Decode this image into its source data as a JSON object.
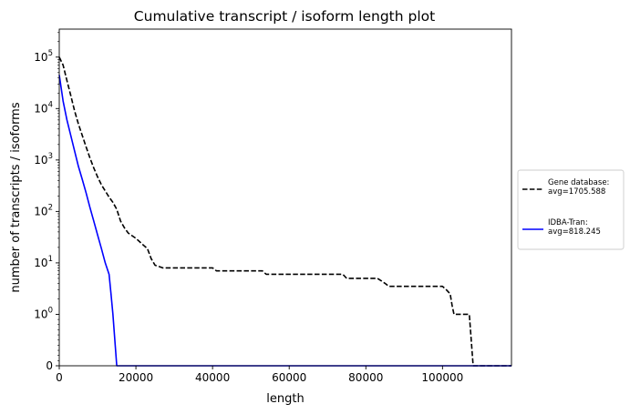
{
  "chart_data": {
    "type": "line",
    "title": "Cumulative transcript / isoform length plot",
    "xlabel": "length",
    "ylabel": "number of transcripts / isoforms",
    "yscale": "symlog",
    "xlim": [
      0,
      118000
    ],
    "ylim": [
      0,
      350000
    ],
    "x_ticks": [
      {
        "value": 0,
        "label": "0"
      },
      {
        "value": 20000,
        "label": "20000"
      },
      {
        "value": 40000,
        "label": "40000"
      },
      {
        "value": 60000,
        "label": "60000"
      },
      {
        "value": 80000,
        "label": "80000"
      },
      {
        "value": 100000,
        "label": "100000"
      }
    ],
    "y_ticks": [
      {
        "value": 0,
        "base": "0",
        "exp": ""
      },
      {
        "value": 1,
        "base": "10",
        "exp": "0"
      },
      {
        "value": 10,
        "base": "10",
        "exp": "1"
      },
      {
        "value": 100,
        "base": "10",
        "exp": "2"
      },
      {
        "value": 1000,
        "base": "10",
        "exp": "3"
      },
      {
        "value": 10000,
        "base": "10",
        "exp": "4"
      },
      {
        "value": 100000,
        "base": "10",
        "exp": "5"
      }
    ],
    "grid": false,
    "legend_placement": "outside-right",
    "series": [
      {
        "name": "Gene database:\navg=1705.588",
        "legend_lines": [
          "Gene database:",
          "avg=1705.588"
        ],
        "color": "#000000",
        "style": "dashed",
        "x": [
          0,
          1000,
          2000,
          3000,
          4000,
          5000,
          6000,
          7000,
          8000,
          9000,
          10000,
          11000,
          12000,
          13000,
          14000,
          15000,
          16000,
          17000,
          18000,
          20000,
          22000,
          23000,
          24000,
          25000,
          26000,
          27000,
          28000,
          40000,
          41000,
          53000,
          54000,
          60000,
          74000,
          75000,
          83000,
          84000,
          85000,
          86000,
          100000,
          101000,
          102000,
          102500,
          103000,
          107000,
          107500,
          108000,
          118000
        ],
        "y": [
          100000,
          70000,
          35000,
          18000,
          9000,
          5000,
          3000,
          1800,
          1100,
          700,
          470,
          330,
          250,
          190,
          150,
          110,
          65,
          48,
          38,
          30,
          22,
          19,
          12,
          9,
          8.5,
          8,
          8,
          8,
          7,
          7,
          6,
          6,
          6,
          5,
          5,
          4.5,
          4,
          3.5,
          3.5,
          3,
          2.5,
          1.5,
          1,
          1,
          0.5,
          0,
          0
        ]
      },
      {
        "name": "IDBA-Tran:\navg=818.245",
        "legend_lines": [
          "IDBA-Tran:",
          "avg=818.245"
        ],
        "color": "#0000ff",
        "style": "solid",
        "x": [
          0,
          1000,
          2000,
          3000,
          4000,
          5000,
          6000,
          7000,
          8000,
          9000,
          10000,
          11000,
          12000,
          13000,
          13500,
          14000,
          15000,
          16000,
          118000
        ],
        "y": [
          45000,
          14000,
          6000,
          3000,
          1500,
          750,
          420,
          230,
          120,
          65,
          35,
          19,
          10,
          6,
          2.5,
          1,
          0,
          0,
          0
        ]
      }
    ]
  }
}
